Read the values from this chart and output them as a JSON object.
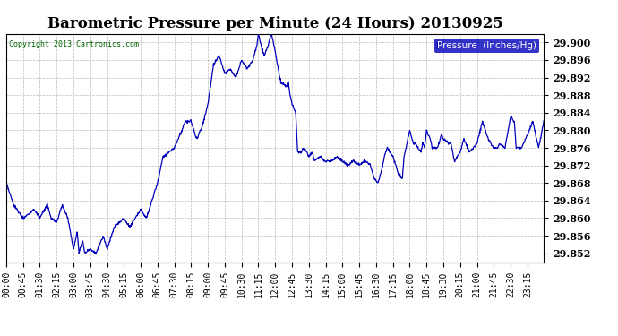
{
  "title": "Barometric Pressure per Minute (24 Hours) 20130925",
  "copyright": "Copyright 2013 Cartronics.com",
  "legend_label": "Pressure  (Inches/Hg)",
  "ylim": [
    29.85,
    29.902
  ],
  "yticks": [
    29.852,
    29.856,
    29.86,
    29.864,
    29.868,
    29.872,
    29.876,
    29.88,
    29.884,
    29.888,
    29.892,
    29.896,
    29.9
  ],
  "line_color": "#0000bb",
  "background_color": "#ffffff",
  "grid_color": "#aaaaaa",
  "title_color": "#000000",
  "xtick_labels": [
    "00:00",
    "00:45",
    "01:30",
    "02:15",
    "03:00",
    "03:45",
    "04:30",
    "05:15",
    "06:00",
    "06:45",
    "07:30",
    "08:15",
    "09:00",
    "09:45",
    "10:30",
    "11:15",
    "12:00",
    "12:45",
    "13:30",
    "14:15",
    "15:00",
    "15:45",
    "16:30",
    "17:15",
    "18:00",
    "18:45",
    "19:30",
    "20:15",
    "21:00",
    "21:45",
    "22:30",
    "23:15"
  ],
  "waypoints": [
    [
      0,
      29.868
    ],
    [
      20,
      29.863
    ],
    [
      45,
      29.86
    ],
    [
      75,
      29.862
    ],
    [
      90,
      29.86
    ],
    [
      110,
      29.863
    ],
    [
      120,
      29.86
    ],
    [
      135,
      29.859
    ],
    [
      150,
      29.863
    ],
    [
      165,
      29.86
    ],
    [
      180,
      29.853
    ],
    [
      190,
      29.857
    ],
    [
      195,
      29.852
    ],
    [
      205,
      29.855
    ],
    [
      210,
      29.852
    ],
    [
      225,
      29.853
    ],
    [
      240,
      29.852
    ],
    [
      260,
      29.856
    ],
    [
      270,
      29.853
    ],
    [
      290,
      29.858
    ],
    [
      315,
      29.86
    ],
    [
      330,
      29.858
    ],
    [
      360,
      29.862
    ],
    [
      375,
      29.86
    ],
    [
      390,
      29.864
    ],
    [
      405,
      29.868
    ],
    [
      420,
      29.874
    ],
    [
      450,
      29.876
    ],
    [
      480,
      29.882
    ],
    [
      495,
      29.882
    ],
    [
      510,
      29.878
    ],
    [
      525,
      29.881
    ],
    [
      540,
      29.886
    ],
    [
      555,
      29.895
    ],
    [
      570,
      29.897
    ],
    [
      585,
      29.893
    ],
    [
      600,
      29.894
    ],
    [
      615,
      29.892
    ],
    [
      630,
      29.896
    ],
    [
      645,
      29.894
    ],
    [
      660,
      29.896
    ],
    [
      670,
      29.899
    ],
    [
      675,
      29.902
    ],
    [
      680,
      29.9
    ],
    [
      690,
      29.897
    ],
    [
      700,
      29.899
    ],
    [
      710,
      29.902
    ],
    [
      720,
      29.898
    ],
    [
      730,
      29.893
    ],
    [
      735,
      29.891
    ],
    [
      750,
      29.89
    ],
    [
      755,
      29.891
    ],
    [
      760,
      29.888
    ],
    [
      765,
      29.886
    ],
    [
      775,
      29.884
    ],
    [
      780,
      29.875
    ],
    [
      790,
      29.875
    ],
    [
      795,
      29.876
    ],
    [
      805,
      29.875
    ],
    [
      810,
      29.874
    ],
    [
      820,
      29.875
    ],
    [
      825,
      29.873
    ],
    [
      840,
      29.874
    ],
    [
      855,
      29.873
    ],
    [
      870,
      29.873
    ],
    [
      885,
      29.874
    ],
    [
      900,
      29.873
    ],
    [
      915,
      29.872
    ],
    [
      930,
      29.873
    ],
    [
      945,
      29.872
    ],
    [
      960,
      29.873
    ],
    [
      975,
      29.872
    ],
    [
      985,
      29.869
    ],
    [
      995,
      29.868
    ],
    [
      1005,
      29.871
    ],
    [
      1015,
      29.875
    ],
    [
      1020,
      29.876
    ],
    [
      1035,
      29.874
    ],
    [
      1050,
      29.87
    ],
    [
      1060,
      29.869
    ],
    [
      1065,
      29.874
    ],
    [
      1080,
      29.88
    ],
    [
      1090,
      29.877
    ],
    [
      1095,
      29.877
    ],
    [
      1110,
      29.875
    ],
    [
      1115,
      29.877
    ],
    [
      1120,
      29.876
    ],
    [
      1125,
      29.88
    ],
    [
      1135,
      29.878
    ],
    [
      1140,
      29.876
    ],
    [
      1155,
      29.876
    ],
    [
      1165,
      29.879
    ],
    [
      1170,
      29.878
    ],
    [
      1185,
      29.877
    ],
    [
      1190,
      29.877
    ],
    [
      1200,
      29.873
    ],
    [
      1215,
      29.875
    ],
    [
      1225,
      29.878
    ],
    [
      1230,
      29.877
    ],
    [
      1240,
      29.875
    ],
    [
      1260,
      29.877
    ],
    [
      1275,
      29.882
    ],
    [
      1290,
      29.878
    ],
    [
      1305,
      29.876
    ],
    [
      1315,
      29.876
    ],
    [
      1320,
      29.877
    ],
    [
      1335,
      29.876
    ],
    [
      1350,
      29.883
    ],
    [
      1360,
      29.882
    ],
    [
      1365,
      29.876
    ],
    [
      1380,
      29.876
    ],
    [
      1395,
      29.879
    ],
    [
      1410,
      29.882
    ],
    [
      1425,
      29.876
    ],
    [
      1439,
      29.882
    ]
  ]
}
